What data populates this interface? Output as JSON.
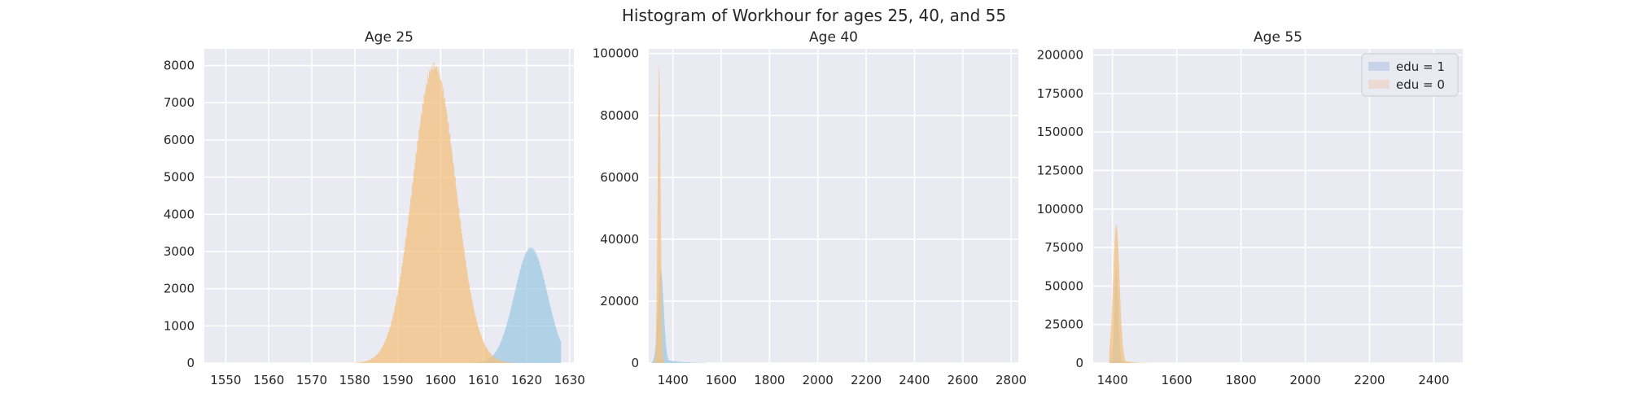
{
  "figure": {
    "title": "Histogram of Workhour for ages 25, 40, and 55"
  },
  "colors": {
    "background": "#eaeaf2",
    "grid": "#ffffff",
    "edu1_fill": "#9ecae1",
    "edu0_fill": "#f3c07f",
    "legend_edu1": "#c6d3e8",
    "legend_edu0": "#ecd9d2"
  },
  "legend": {
    "placement": "upper-right of Age 55 panel",
    "entries": [
      "edu = 1",
      "edu = 0"
    ]
  },
  "chart_data": [
    {
      "type": "histogram",
      "title": "Age 25",
      "xlim": [
        1545,
        1631
      ],
      "ylim": [
        0,
        8450
      ],
      "xticks": [
        1550,
        1560,
        1570,
        1580,
        1590,
        1600,
        1610,
        1620,
        1630
      ],
      "yticks": [
        0,
        1000,
        2000,
        3000,
        4000,
        5000,
        6000,
        7000,
        8000
      ],
      "grid": true,
      "series": [
        {
          "name": "edu = 1",
          "color": "#9ecae1",
          "mean": 1621,
          "sd": 3.8,
          "peak": 3100,
          "xmin": 1600,
          "xmax": 1628
        },
        {
          "name": "edu = 0",
          "color": "#f3c07f",
          "mean": 1598.5,
          "sd": 5.0,
          "peak": 8000,
          "xmin": 1580,
          "xmax": 1618
        }
      ]
    },
    {
      "type": "histogram",
      "title": "Age 40",
      "xlim": [
        1300,
        2830
      ],
      "ylim": [
        0,
        101500
      ],
      "xticks": [
        1400,
        1600,
        1800,
        2000,
        2200,
        2400,
        2600,
        2800
      ],
      "yticks": [
        0,
        20000,
        40000,
        60000,
        80000,
        100000
      ],
      "grid": true,
      "series": [
        {
          "name": "edu = 1",
          "color": "#9ecae1",
          "mean": 1350,
          "sd": 12,
          "peak": 30000,
          "xmin": 1310,
          "xmax": 1540,
          "tail": 60
        },
        {
          "name": "edu = 0",
          "color": "#f3c07f",
          "mean": 1343,
          "sd": 6,
          "peak": 96000,
          "xmin": 1310,
          "xmax": 1420
        }
      ]
    },
    {
      "type": "histogram",
      "title": "Age 55",
      "xlim": [
        1340,
        2490
      ],
      "ylim": [
        0,
        204000
      ],
      "xticks": [
        1400,
        1600,
        1800,
        2000,
        2200,
        2400
      ],
      "yticks": [
        0,
        25000,
        50000,
        75000,
        100000,
        125000,
        150000,
        175000,
        200000
      ],
      "grid": true,
      "series": [
        {
          "name": "edu = 1",
          "color": "#9ecae1",
          "mean": 1412,
          "sd": 6,
          "peak": 60000,
          "xmin": 1390,
          "xmax": 1470,
          "tail": 15
        },
        {
          "name": "edu = 0",
          "color": "#f3c07f",
          "mean": 1412,
          "sd": 10,
          "peak": 90000,
          "xmin": 1390,
          "xmax": 1520,
          "tail": 25
        }
      ]
    }
  ]
}
